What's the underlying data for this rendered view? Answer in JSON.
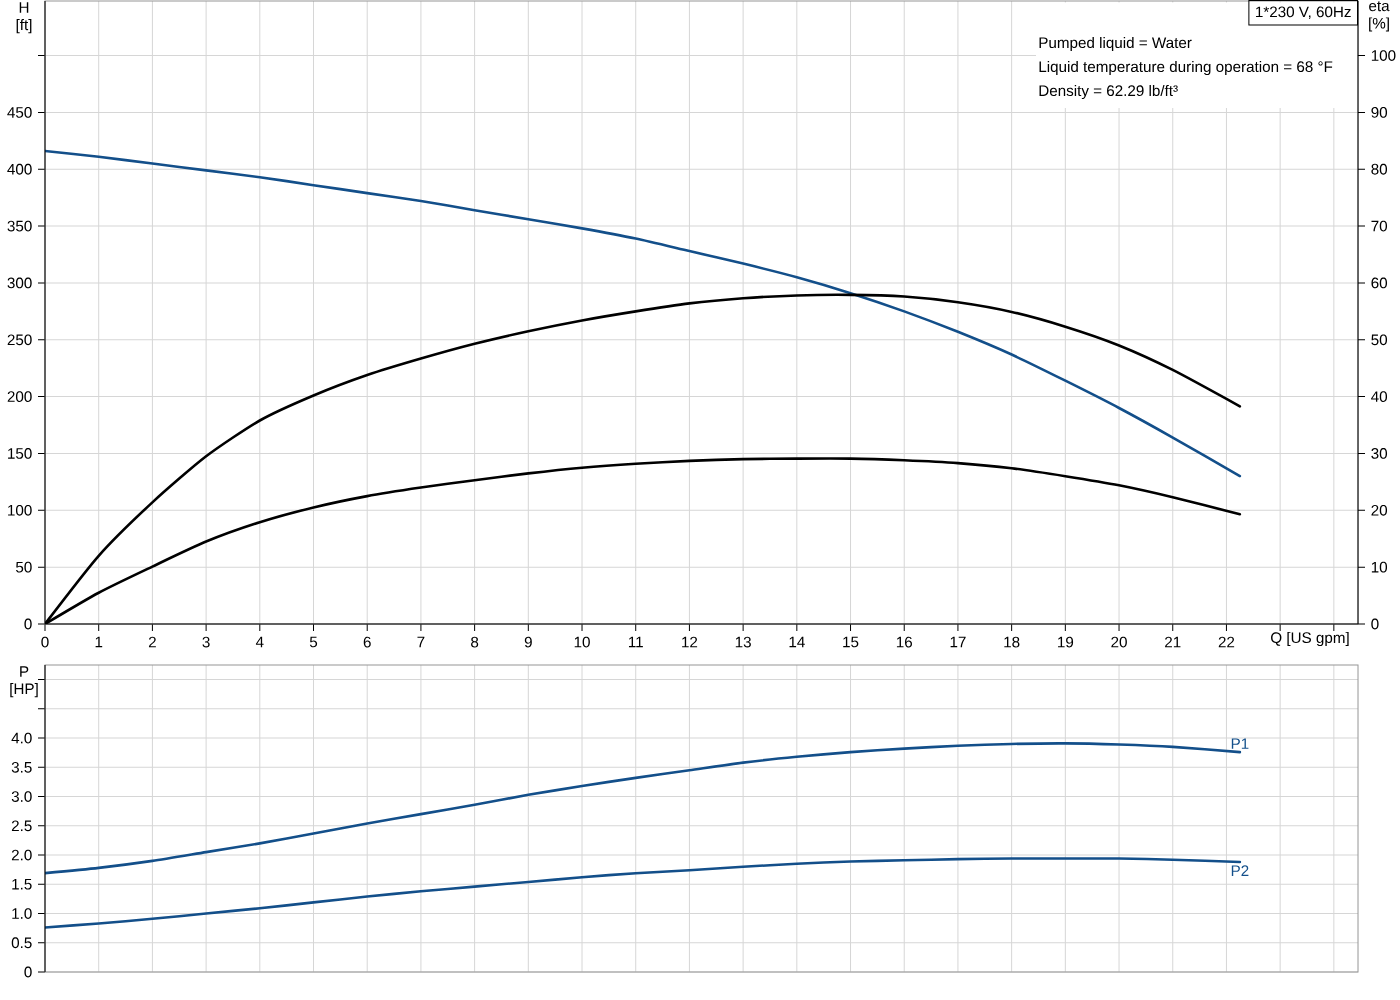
{
  "chart_data": [
    {
      "type": "line",
      "title": "1*230 V, 60Hz",
      "xlabel": "Q [US gpm]",
      "ylabel": "H [ft]",
      "y2label": "eta [%]",
      "annotations": [
        "Pumped liquid = Water",
        "Liquid temperature during operation = 68 °F",
        "Density = 62.29 lb/ft³"
      ],
      "xlim": [
        0,
        24.45
      ],
      "ylim": [
        0,
        548
      ],
      "y2lim": [
        0,
        109.6
      ],
      "xticks": [
        0,
        1,
        2,
        3,
        4,
        5,
        6,
        7,
        8,
        9,
        10,
        11,
        12,
        13,
        14,
        15,
        16,
        17,
        18,
        19,
        20,
        21,
        22,
        {
          "value": 23,
          "label": null
        },
        {
          "value": 24,
          "label": null
        }
      ],
      "yticks": [
        0,
        50,
        100,
        150,
        200,
        250,
        300,
        350,
        400,
        450,
        {
          "value": 500,
          "label": null
        }
      ],
      "y2ticks": [
        0,
        10,
        20,
        30,
        40,
        50,
        60,
        70,
        80,
        90,
        100
      ],
      "grid": true,
      "series": [
        {
          "color": "#134f8a",
          "x": [
            0,
            1,
            2,
            3,
            4,
            5,
            6,
            7,
            8,
            9,
            10,
            11,
            12,
            13,
            14,
            15,
            16,
            17,
            18,
            19,
            20,
            21,
            22.25
          ],
          "values": [
            416,
            411,
            405,
            399,
            393,
            386,
            379,
            372,
            364,
            356,
            348,
            339,
            328,
            317,
            305,
            291,
            275,
            257,
            237,
            214,
            190,
            164,
            130
          ]
        },
        {
          "color": "#000000",
          "axis": "y2",
          "x": [
            0,
            1,
            2,
            3,
            4,
            5,
            6,
            7,
            8,
            9,
            10,
            11,
            12,
            13,
            14,
            15,
            16,
            17,
            18,
            19,
            20,
            21,
            22.25
          ],
          "values": [
            0,
            12,
            21.4,
            29.5,
            35.8,
            40.2,
            43.8,
            46.7,
            49.3,
            51.5,
            53.4,
            55.0,
            56.4,
            57.3,
            57.8,
            57.9,
            57.6,
            56.6,
            54.9,
            52.3,
            49.0,
            44.7,
            38.3
          ]
        },
        {
          "color": "#000000",
          "axis": "y2",
          "x": [
            0,
            1,
            2,
            3,
            4,
            5,
            6,
            7,
            8,
            9,
            10,
            11,
            12,
            13,
            14,
            15,
            16,
            17,
            18,
            19,
            20,
            21,
            22.25
          ],
          "values": [
            0,
            5.5,
            10.1,
            14.5,
            17.9,
            20.5,
            22.5,
            24.0,
            25.3,
            26.5,
            27.5,
            28.2,
            28.7,
            29.0,
            29.1,
            29.1,
            28.8,
            28.3,
            27.4,
            26.0,
            24.4,
            22.3,
            19.3
          ]
        }
      ]
    },
    {
      "type": "line",
      "ylabel": "P [HP]",
      "xlim": [
        0,
        24.45
      ],
      "ylim": [
        0,
        5.25
      ],
      "xticks": [
        0,
        1,
        2,
        3,
        4,
        5,
        6,
        7,
        8,
        9,
        10,
        11,
        12,
        13,
        14,
        15,
        16,
        17,
        18,
        19,
        20,
        21,
        22,
        23,
        24
      ],
      "yticks": [
        0,
        0.5,
        {
          "value": 1,
          "label": "1.0"
        },
        1.5,
        {
          "value": 2,
          "label": "2.0"
        },
        2.5,
        {
          "value": 3,
          "label": "3.0"
        },
        3.5,
        {
          "value": 4,
          "label": "4.0"
        },
        {
          "value": 4.5,
          "label": null
        },
        {
          "value": 5,
          "label": null
        }
      ],
      "tick_labels": "y",
      "grid": true,
      "series": [
        {
          "name": "P1",
          "color": "#134f8a",
          "x": [
            0,
            1,
            2,
            3,
            4,
            5,
            6,
            7,
            8,
            9,
            10,
            11,
            12,
            13,
            14,
            15,
            16,
            17,
            18,
            19,
            20,
            21,
            22.25
          ],
          "values": [
            1.69,
            1.78,
            1.9,
            2.05,
            2.2,
            2.37,
            2.54,
            2.7,
            2.86,
            3.03,
            3.18,
            3.32,
            3.45,
            3.58,
            3.68,
            3.76,
            3.82,
            3.87,
            3.9,
            3.91,
            3.89,
            3.85,
            3.76
          ]
        },
        {
          "name": "P2",
          "color": "#134f8a",
          "x": [
            0,
            1,
            2,
            3,
            4,
            5,
            6,
            7,
            8,
            9,
            10,
            11,
            12,
            13,
            14,
            15,
            16,
            17,
            18,
            19,
            20,
            21,
            22.25
          ],
          "values": [
            0.76,
            0.83,
            0.91,
            1.0,
            1.09,
            1.19,
            1.29,
            1.38,
            1.46,
            1.54,
            1.62,
            1.69,
            1.74,
            1.8,
            1.85,
            1.89,
            1.91,
            1.93,
            1.94,
            1.94,
            1.94,
            1.92,
            1.88
          ]
        }
      ]
    }
  ]
}
